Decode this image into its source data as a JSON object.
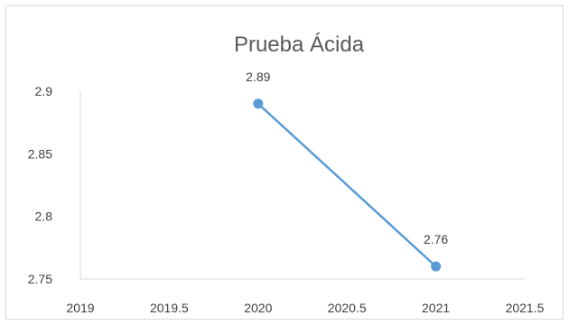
{
  "chart_data": {
    "type": "scatter",
    "title": "Prueba Ácida",
    "xlabel": "",
    "ylabel": "",
    "xlim": [
      2019,
      2021.5
    ],
    "ylim": [
      2.75,
      2.9
    ],
    "x_ticks": [
      "2019",
      "2019.5",
      "2020",
      "2020.5",
      "2021",
      "2021.5"
    ],
    "x_tick_values": [
      2019,
      2019.5,
      2020,
      2020.5,
      2021,
      2021.5
    ],
    "y_ticks": [
      "2.75",
      "2.8",
      "2.85",
      "2.9"
    ],
    "y_tick_values": [
      2.75,
      2.8,
      2.85,
      2.9
    ],
    "grid": false,
    "legend": "none",
    "series": [
      {
        "x": [
          2020,
          2021
        ],
        "y": [
          2.89,
          2.76
        ],
        "labels": [
          "2.89",
          "2.76"
        ],
        "line": true,
        "marker": "circle",
        "color": "#5b9bd5"
      }
    ]
  }
}
